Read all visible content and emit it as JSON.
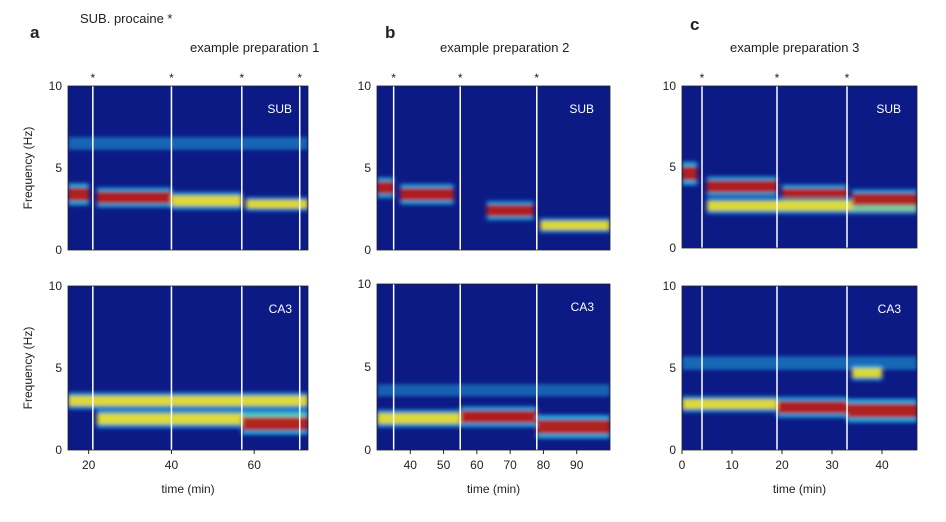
{
  "figure_note": "SUB. procaine *",
  "panels": [
    {
      "letter": "a",
      "title": "example preparation 1"
    },
    {
      "letter": "b",
      "title": "example preparation 2"
    },
    {
      "letter": "c",
      "title": "example preparation 3"
    }
  ],
  "colors": {
    "background": "#0c1a86",
    "accent_low": "#22c8f0",
    "accent_mid": "#f2e32a",
    "accent_high": "#c0130b",
    "marker_line": "#ffffff"
  },
  "chart_data": [
    {
      "type": "heatmap",
      "panel": "a",
      "region": "SUB",
      "ylabel": "Frequency (Hz)",
      "ylim": [
        0,
        10
      ],
      "yticks": [
        0,
        5,
        10
      ],
      "xlim": [
        15,
        73
      ],
      "xticks": [],
      "xlabel": "",
      "markers": [
        21,
        40,
        57,
        71
      ],
      "bands": [
        {
          "x": [
            15,
            20
          ],
          "freq": 3.4,
          "power": 0.9
        },
        {
          "x": [
            22,
            40
          ],
          "freq": 3.2,
          "power": 0.75
        },
        {
          "x": [
            40,
            57
          ],
          "freq": 3.0,
          "power": 0.6
        },
        {
          "x": [
            58,
            73
          ],
          "freq": 2.8,
          "power": 0.35
        },
        {
          "x": [
            15,
            73
          ],
          "freq": 6.5,
          "power": 0.2
        }
      ]
    },
    {
      "type": "heatmap",
      "panel": "a",
      "region": "CA3",
      "ylabel": "Frequency (Hz)",
      "ylim": [
        0,
        10
      ],
      "yticks": [
        0,
        5,
        10
      ],
      "xlim": [
        15,
        73
      ],
      "xticks": [
        20,
        40,
        60
      ],
      "xlabel": "time (min)",
      "markers": [
        21,
        40,
        57,
        71
      ],
      "bands": [
        {
          "x": [
            15,
            73
          ],
          "freq": 3.0,
          "power": 0.55
        },
        {
          "x": [
            22,
            73
          ],
          "freq": 1.9,
          "power": 0.65
        },
        {
          "x": [
            57,
            73
          ],
          "freq": 1.6,
          "power": 0.9
        }
      ]
    },
    {
      "type": "heatmap",
      "panel": "b",
      "region": "SUB",
      "ylabel": "",
      "ylim": [
        0,
        10
      ],
      "yticks": [
        0,
        5,
        10
      ],
      "xlim": [
        30,
        100
      ],
      "xticks": [],
      "xlabel": "",
      "markers": [
        35,
        55,
        78
      ],
      "bands": [
        {
          "x": [
            30,
            35
          ],
          "freq": 3.8,
          "power": 0.8
        },
        {
          "x": [
            37,
            53
          ],
          "freq": 3.4,
          "power": 0.8
        },
        {
          "x": [
            63,
            77
          ],
          "freq": 2.4,
          "power": 0.7
        },
        {
          "x": [
            79,
            100
          ],
          "freq": 1.5,
          "power": 0.4
        }
      ]
    },
    {
      "type": "heatmap",
      "panel": "b",
      "region": "CA3",
      "ylabel": "",
      "ylim": [
        0,
        10
      ],
      "yticks": [
        0,
        5,
        10
      ],
      "xlim": [
        30,
        100
      ],
      "xticks": [
        40,
        50,
        60,
        70,
        80,
        90
      ],
      "xlabel": "time (min)",
      "markers": [
        35,
        55,
        78
      ],
      "bands": [
        {
          "x": [
            30,
            55
          ],
          "freq": 1.9,
          "power": 0.6
        },
        {
          "x": [
            55,
            78
          ],
          "freq": 2.0,
          "power": 0.8
        },
        {
          "x": [
            78,
            100
          ],
          "freq": 1.4,
          "power": 1.0
        },
        {
          "x": [
            30,
            100
          ],
          "freq": 3.6,
          "power": 0.15
        }
      ]
    },
    {
      "type": "heatmap",
      "panel": "c",
      "region": "SUB",
      "ylabel": "",
      "ylim": [
        0,
        10
      ],
      "yticks": [
        0,
        5,
        10
      ],
      "xlim": [
        0,
        47
      ],
      "xticks": [],
      "xlabel": "",
      "markers": [
        4,
        19,
        33
      ],
      "bands": [
        {
          "x": [
            0,
            3
          ],
          "freq": 4.6,
          "power": 1.0
        },
        {
          "x": [
            5,
            19
          ],
          "freq": 3.8,
          "power": 0.75
        },
        {
          "x": [
            20,
            33
          ],
          "freq": 3.3,
          "power": 0.75
        },
        {
          "x": [
            5,
            47
          ],
          "freq": 2.6,
          "power": 0.5
        },
        {
          "x": [
            34,
            47
          ],
          "freq": 3.0,
          "power": 0.75
        }
      ]
    },
    {
      "type": "heatmap",
      "panel": "c",
      "region": "CA3",
      "ylabel": "",
      "ylim": [
        0,
        10
      ],
      "yticks": [
        0,
        5,
        10
      ],
      "xlim": [
        0,
        47
      ],
      "xticks": [
        0,
        10,
        20,
        30,
        40
      ],
      "xlabel": "time (min)",
      "markers": [
        4,
        19,
        33
      ],
      "bands": [
        {
          "x": [
            0,
            19
          ],
          "freq": 2.8,
          "power": 0.5
        },
        {
          "x": [
            19,
            33
          ],
          "freq": 2.6,
          "power": 0.8
        },
        {
          "x": [
            33,
            47
          ],
          "freq": 2.4,
          "power": 1.0
        },
        {
          "x": [
            0,
            47
          ],
          "freq": 5.3,
          "power": 0.25
        },
        {
          "x": [
            34,
            40
          ],
          "freq": 4.7,
          "power": 0.45
        }
      ]
    }
  ]
}
